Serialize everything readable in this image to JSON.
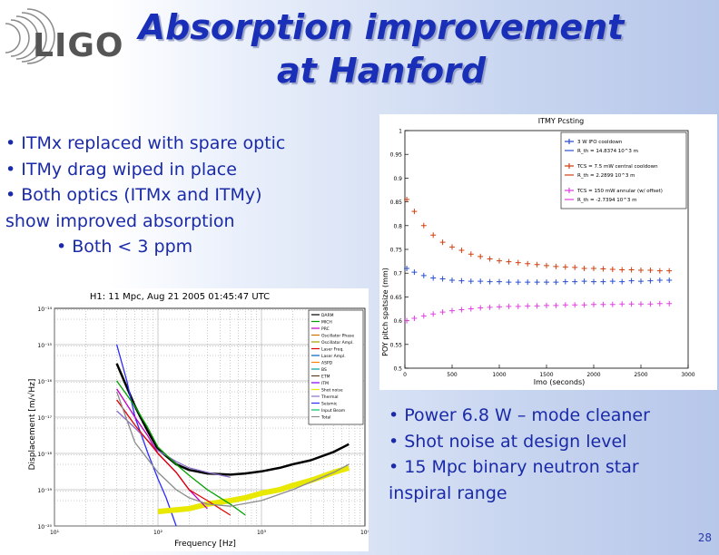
{
  "logo": {
    "text": "LIGO"
  },
  "slide": {
    "title_line1": "Absorption improvement",
    "title_line2": "at Hanford",
    "page_number": "28"
  },
  "bullets_top": [
    {
      "text": "• ITMx replaced with spare optic"
    },
    {
      "text": "• ITMy drag wiped in place"
    },
    {
      "text": "• Both optics (ITMx and ITMy)"
    },
    {
      "text": "show improved absorption"
    },
    {
      "text": "• Both < 3 ppm"
    }
  ],
  "bullets_bottom": [
    {
      "text": "• Power 6.8 W – mode cleaner"
    },
    {
      "text": "• Shot noise at design level"
    },
    {
      "text": "• 15 Mpc binary neutron star"
    },
    {
      "text": "inspiral range"
    }
  ],
  "chart_data": [
    {
      "type": "scatter",
      "title": "ITMY Pcsting",
      "xlabel": "Imo (seconds)",
      "ylabel": "POY pitch spatsize (mm)",
      "xlim": [
        0,
        3000
      ],
      "ylim": [
        0.5,
        1.0
      ],
      "x_ticks": [
        "0",
        "500",
        "1000",
        "1500",
        "2000",
        "2500",
        "3000"
      ],
      "y_ticks": [
        "0.5",
        "0.55",
        "0.6",
        "0.65",
        "0.7",
        "0.75",
        "0.8",
        "0.85",
        "0.9",
        "0.95",
        "1"
      ],
      "grid": false,
      "legend_position": "top-right",
      "colors": {
        "blue": "#2a4fd0",
        "red": "#d04010",
        "magenta": "#e040e0"
      },
      "series": [
        {
          "name": "3 W IFO cooldown",
          "fit": "R_th = 14.8374 10^3 m",
          "color": "blue",
          "x": [
            20,
            100,
            200,
            300,
            400,
            500,
            600,
            700,
            800,
            900,
            1000,
            1100,
            1200,
            1300,
            1400,
            1500,
            1600,
            1700,
            1800,
            1900,
            2000,
            2100,
            2200,
            2300,
            2400,
            2500,
            2600,
            2700,
            2800
          ],
          "y": [
            0.71,
            0.702,
            0.695,
            0.69,
            0.688,
            0.685,
            0.684,
            0.683,
            0.683,
            0.682,
            0.682,
            0.681,
            0.681,
            0.681,
            0.681,
            0.681,
            0.681,
            0.682,
            0.682,
            0.683,
            0.682,
            0.682,
            0.683,
            0.682,
            0.684,
            0.683,
            0.684,
            0.685,
            0.685
          ]
        },
        {
          "name": "TCS = 7.5 mW central cooldown",
          "fit": "R_th = 2.2899 10^3 m",
          "color": "red",
          "x": [
            20,
            100,
            200,
            300,
            400,
            500,
            600,
            700,
            800,
            900,
            1000,
            1100,
            1200,
            1300,
            1400,
            1500,
            1600,
            1700,
            1800,
            1900,
            2000,
            2100,
            2200,
            2300,
            2400,
            2500,
            2600,
            2700,
            2800
          ],
          "y": [
            0.855,
            0.83,
            0.8,
            0.78,
            0.765,
            0.755,
            0.748,
            0.74,
            0.735,
            0.73,
            0.726,
            0.724,
            0.722,
            0.72,
            0.718,
            0.716,
            0.714,
            0.713,
            0.712,
            0.71,
            0.71,
            0.709,
            0.708,
            0.707,
            0.707,
            0.706,
            0.706,
            0.705,
            0.705
          ]
        },
        {
          "name": "TCS = 150 mW annular (w/ offset)",
          "fit": "R_th = -2.7394 10^3 m",
          "color": "magenta",
          "x": [
            20,
            100,
            200,
            300,
            400,
            500,
            600,
            700,
            800,
            900,
            1000,
            1100,
            1200,
            1300,
            1400,
            1500,
            1600,
            1700,
            1800,
            1900,
            2000,
            2100,
            2200,
            2300,
            2400,
            2500,
            2600,
            2700,
            2800
          ],
          "y": [
            0.6,
            0.605,
            0.61,
            0.614,
            0.618,
            0.621,
            0.623,
            0.625,
            0.627,
            0.628,
            0.629,
            0.63,
            0.63,
            0.631,
            0.631,
            0.632,
            0.632,
            0.633,
            0.633,
            0.633,
            0.634,
            0.634,
            0.634,
            0.635,
            0.635,
            0.635,
            0.635,
            0.636,
            0.636
          ]
        }
      ]
    },
    {
      "type": "line",
      "title": "H1: 11 Mpc, Aug 21 2005 01:45:47 UTC",
      "xlabel": "Frequency [Hz]",
      "ylabel": "Displacement [m/√Hz]",
      "x_scale": "log",
      "y_scale": "log",
      "xlim": [
        10,
        10000
      ],
      "ylim": [
        1e-20,
        1e-14
      ],
      "x_ticks": [
        "10¹",
        "10²",
        "10³",
        "10⁴"
      ],
      "y_ticks": [
        "10⁻²⁰",
        "10⁻¹⁹",
        "10⁻¹⁸",
        "10⁻¹⁷",
        "10⁻¹⁶",
        "10⁻¹⁵",
        "10⁻¹⁴"
      ],
      "grid": true,
      "legend_position": "top-right",
      "legend_entries": [
        "DARM",
        "MICH",
        "PRC",
        "Oscillator Phase",
        "Oscillator Ampl.",
        "Laser Freq.",
        "Laser Ampl.",
        "ASPD",
        "BS",
        "ETM",
        "ITM",
        "Shot noise",
        "Thermal",
        "Seismic",
        "Input Beam",
        "Total"
      ],
      "colors": {
        "measured": "#000000",
        "shot": "#e8e800",
        "seismic": "#2c2cff",
        "thermal": "#8a6ec8",
        "design": "#8c8c8c",
        "mich": "#00a000",
        "prc": "#c000c0",
        "laser": "#e00000"
      },
      "series": [
        {
          "name": "DARM",
          "color": "measured",
          "x": [
            40,
            60,
            80,
            100,
            150,
            200,
            300,
            500,
            700,
            1000,
            1500,
            2000,
            3000,
            5000,
            7000
          ],
          "y": [
            3e-16,
            2e-17,
            4e-18,
            1.3e-18,
            5e-19,
            3.5e-19,
            2.8e-19,
            2.6e-19,
            2.8e-19,
            3.2e-19,
            4e-19,
            5e-19,
            6.5e-19,
            1.1e-18,
            1.8e-18
          ]
        },
        {
          "name": "Seismic",
          "color": "seismic",
          "x": [
            40,
            50,
            60,
            80,
            100,
            120,
            150
          ],
          "y": [
            1e-15,
            1e-16,
            1e-17,
            1e-18,
            2e-19,
            6e-20,
            1e-20
          ]
        },
        {
          "name": "Thermal",
          "color": "thermal",
          "x": [
            40,
            60,
            100,
            150,
            200,
            300,
            500
          ],
          "y": [
            1.5e-17,
            5e-18,
            1.2e-18,
            6e-19,
            4e-19,
            3e-19,
            2.2e-19
          ]
        },
        {
          "name": "Shot noise",
          "color": "shot",
          "x": [
            100,
            200,
            300,
            500,
            700,
            1000,
            1500,
            2000,
            3000,
            5000,
            7000
          ],
          "y": [
            2.5e-20,
            3e-20,
            4e-20,
            5e-20,
            6e-20,
            8e-20,
            1e-19,
            1.3e-19,
            1.8e-19,
            3e-19,
            4e-19
          ]
        },
        {
          "name": "MICH",
          "color": "mich",
          "x": [
            40,
            60,
            80,
            100,
            150,
            200,
            300,
            500,
            700
          ],
          "y": [
            1e-16,
            2e-17,
            5e-18,
            1.5e-18,
            5e-19,
            2.5e-19,
            1e-19,
            4e-20,
            2e-20
          ]
        },
        {
          "name": "PRC",
          "color": "prc",
          "x": [
            40,
            60,
            80,
            100,
            150,
            200,
            300
          ],
          "y": [
            6e-17,
            1e-17,
            3e-18,
            1e-18,
            3e-19,
            1e-19,
            3e-20
          ]
        },
        {
          "name": "Laser Freq.",
          "color": "laser",
          "x": [
            40,
            60,
            100,
            150,
            200,
            300,
            500
          ],
          "y": [
            3e-17,
            6e-18,
            1e-18,
            3e-19,
            1e-19,
            5e-20,
            2e-20
          ]
        },
        {
          "name": "Total",
          "color": "design",
          "x": [
            40,
            60,
            100,
            150,
            200,
            300,
            500,
            1000,
            2000,
            5000,
            7000
          ],
          "y": [
            5e-17,
            2e-18,
            3e-19,
            1e-19,
            6e-20,
            4e-20,
            3.5e-20,
            5e-20,
            1e-19,
            3e-19,
            5e-19
          ]
        }
      ]
    }
  ]
}
